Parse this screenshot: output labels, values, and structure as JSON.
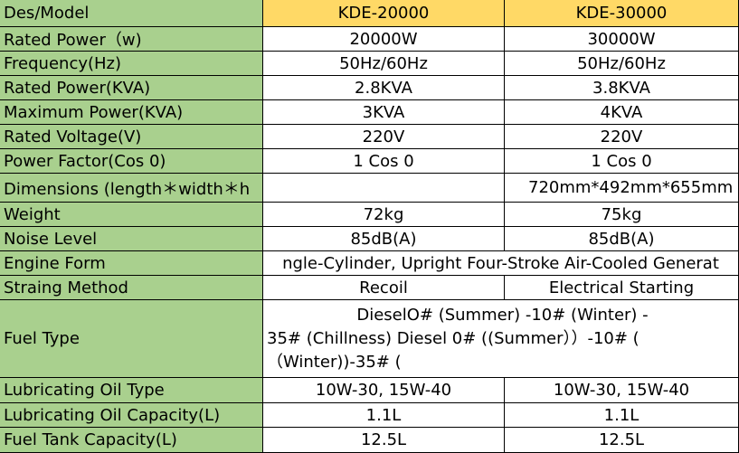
{
  "table": {
    "header": [
      "Des/Model",
      "KDE-20000",
      "KDE-30000"
    ],
    "rows": [
      {
        "label": "Rated  Power（w)",
        "cells": [
          "20000W",
          "30000W"
        ]
      },
      {
        "label": "Frequency(Hz)",
        "cells": [
          "50Hz/60Hz",
          "50Hz/60Hz"
        ]
      },
      {
        "label": "Rated Power(KVA)",
        "cells": [
          "2.8KVA",
          "3.8KVA"
        ]
      },
      {
        "label": "Maximum Power(KVA)",
        "cells": [
          "3KVA",
          "4KVA"
        ]
      },
      {
        "label": "Rated Voltage(V)",
        "cells": [
          "220V",
          "220V"
        ]
      },
      {
        "label": "Power Factor(Cos 0)",
        "cells": [
          "1 Cos 0",
          "1 Cos 0"
        ]
      },
      {
        "label": "Dimensions (length＊width＊h",
        "cells": [
          null,
          "720mm*492mm*655mm"
        ]
      },
      {
        "label": "Weight",
        "cells": [
          "72kg",
          "75kg"
        ]
      },
      {
        "label": "Noise Level",
        "cells": [
          "85dB(A)",
          "85dB(A)"
        ]
      },
      {
        "label": "Engine Form",
        "cells": [
          "ngle-Cylinder, Upright Four-Stroke Air-Cooled Generat"
        ]
      },
      {
        "label": "Straing Method",
        "cells": [
          "Recoil",
          "Electrical Starting"
        ]
      },
      {
        "label": "Fuel Type",
        "cells": [
          [
            "DieselO# (Summer) -10# (Winter) -",
            "35# (Chillness) Diesel 0# ((Summer））-10# (",
            "（Winter))-35# ("
          ]
        ]
      },
      {
        "label": "Lubricating Oil Type",
        "cells": [
          "10W-30, 15W-40",
          "10W-30, 15W-40"
        ]
      },
      {
        "label": "Lubricating Oil Capacity(L)",
        "cells": [
          "1.1L",
          "1.1L"
        ]
      },
      {
        "label": "Fuel Tank Capacity(L)",
        "cells": [
          "12.5L",
          "12.5L"
        ]
      }
    ]
  }
}
